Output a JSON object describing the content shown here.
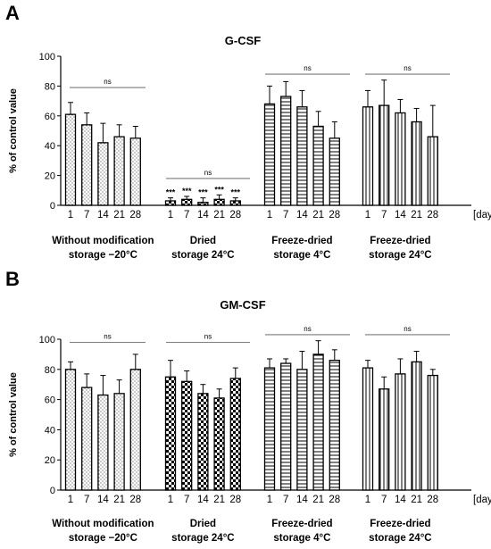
{
  "chart_data": [
    {
      "panel_label": "A",
      "type": "bar",
      "title": "G-CSF",
      "ylabel": "% of control value",
      "ylim": [
        0,
        100
      ],
      "yticks": [
        0,
        20,
        40,
        60,
        80,
        100
      ],
      "x_unit_label": "[days]",
      "error_bars": true,
      "groups": [
        {
          "label_lines": [
            "Without modification",
            "storage −20°C"
          ],
          "pattern": "dots",
          "categories": [
            "1",
            "7",
            "14",
            "21",
            "28"
          ],
          "values": [
            61,
            54,
            42,
            46,
            45
          ],
          "errors": [
            8,
            8,
            13,
            8,
            8
          ],
          "bracket_label": "ns",
          "bar_labels": []
        },
        {
          "label_lines": [
            "Dried",
            "storage 24°C"
          ],
          "pattern": "checker",
          "categories": [
            "1",
            "7",
            "14",
            "21",
            "28"
          ],
          "values": [
            3,
            4,
            2,
            4,
            3
          ],
          "errors": [
            2,
            2,
            3,
            3,
            2
          ],
          "bracket_label": "ns",
          "bar_labels": [
            "***",
            "***",
            "***",
            "***",
            "***"
          ]
        },
        {
          "label_lines": [
            "Freeze-dried",
            "storage 4°C"
          ],
          "pattern": "horizontal",
          "categories": [
            "1",
            "7",
            "14",
            "21",
            "28"
          ],
          "values": [
            68,
            73,
            66,
            53,
            45
          ],
          "errors": [
            12,
            10,
            11,
            10,
            11
          ],
          "bracket_label": "ns",
          "bar_labels": []
        },
        {
          "label_lines": [
            "Freeze-dried",
            "storage 24°C"
          ],
          "pattern": "vertical",
          "categories": [
            "1",
            "7",
            "14",
            "21",
            "28"
          ],
          "values": [
            66,
            67,
            62,
            56,
            46
          ],
          "errors": [
            11,
            17,
            9,
            9,
            21
          ],
          "bracket_label": "ns",
          "bar_labels": []
        }
      ]
    },
    {
      "panel_label": "B",
      "type": "bar",
      "title": "GM-CSF",
      "ylabel": "% of control value",
      "ylim": [
        0,
        100
      ],
      "yticks": [
        0,
        20,
        40,
        60,
        80,
        100
      ],
      "x_unit_label": "[days]",
      "error_bars": true,
      "groups": [
        {
          "label_lines": [
            "Without modification",
            "storage −20°C"
          ],
          "pattern": "dots",
          "categories": [
            "1",
            "7",
            "14",
            "21",
            "28"
          ],
          "values": [
            80,
            68,
            63,
            64,
            80
          ],
          "errors": [
            5,
            9,
            13,
            9,
            10
          ],
          "bracket_label": "ns",
          "bar_labels": []
        },
        {
          "label_lines": [
            "Dried",
            "storage 24°C"
          ],
          "pattern": "checker",
          "categories": [
            "1",
            "7",
            "14",
            "21",
            "28"
          ],
          "values": [
            75,
            72,
            64,
            61,
            74
          ],
          "errors": [
            11,
            7,
            6,
            6,
            7
          ],
          "bracket_label": "ns",
          "bar_labels": []
        },
        {
          "label_lines": [
            "Freeze-dried",
            "storage 4°C"
          ],
          "pattern": "horizontal",
          "categories": [
            "1",
            "7",
            "14",
            "21",
            "28"
          ],
          "values": [
            81,
            84,
            80,
            90,
            86
          ],
          "errors": [
            6,
            3,
            12,
            9,
            7
          ],
          "bracket_label": "ns",
          "bar_labels": []
        },
        {
          "label_lines": [
            "Freeze-dried",
            "storage 24°C"
          ],
          "pattern": "vertical",
          "categories": [
            "1",
            "7",
            "14",
            "21",
            "28"
          ],
          "values": [
            81,
            67,
            77,
            85,
            76
          ],
          "errors": [
            5,
            8,
            10,
            7,
            4
          ],
          "bracket_label": "ns",
          "bar_labels": []
        }
      ]
    }
  ]
}
